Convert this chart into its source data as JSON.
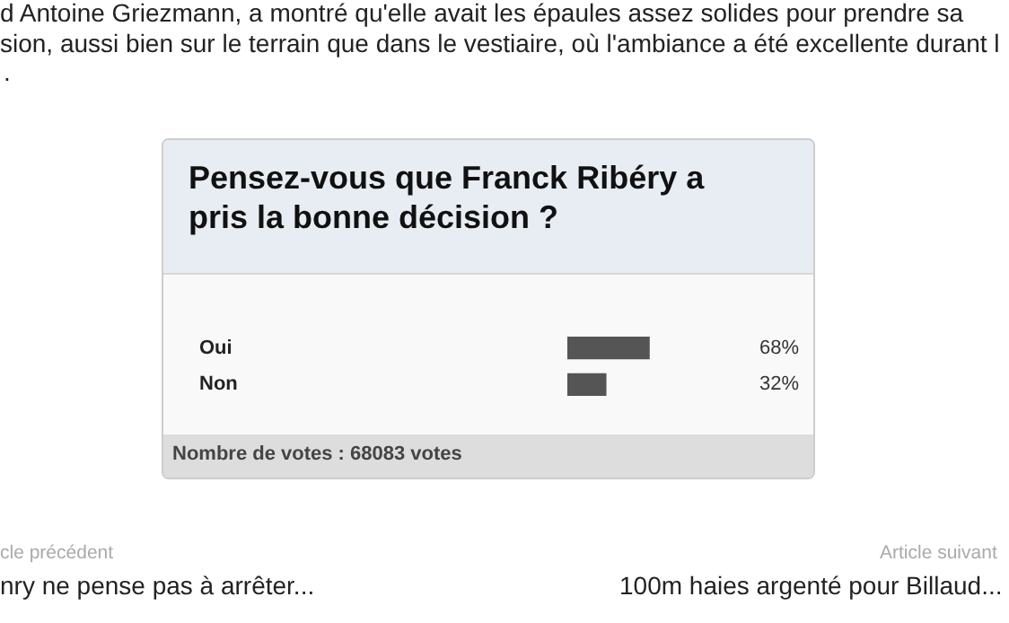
{
  "chart_data": {
    "type": "bar",
    "orientation": "horizontal",
    "title": "Pensez-vous que Franck Ribéry a pris la bonne décision ?",
    "categories": [
      "Oui",
      "Non"
    ],
    "values": [
      68,
      32
    ],
    "color": "#555555",
    "value_labels": [
      "68%",
      "32%"
    ],
    "tick_labels": "y",
    "grid": false,
    "legend": false,
    "annotations": [
      "Nombre de votes : 68083 votes",
      "d Antoine Griezmann, a montré qu'elle avait les épaules assez solides pour prendre sa",
      "sion, aussi bien sur le terrain que dans le vestiaire, où l'ambiance a été excellente durant l",
      ".",
      "cle précédent",
      "nry ne pense pas à arrêter...",
      "Article suivant",
      "100m haies argenté pour Billaud..."
    ]
  }
}
